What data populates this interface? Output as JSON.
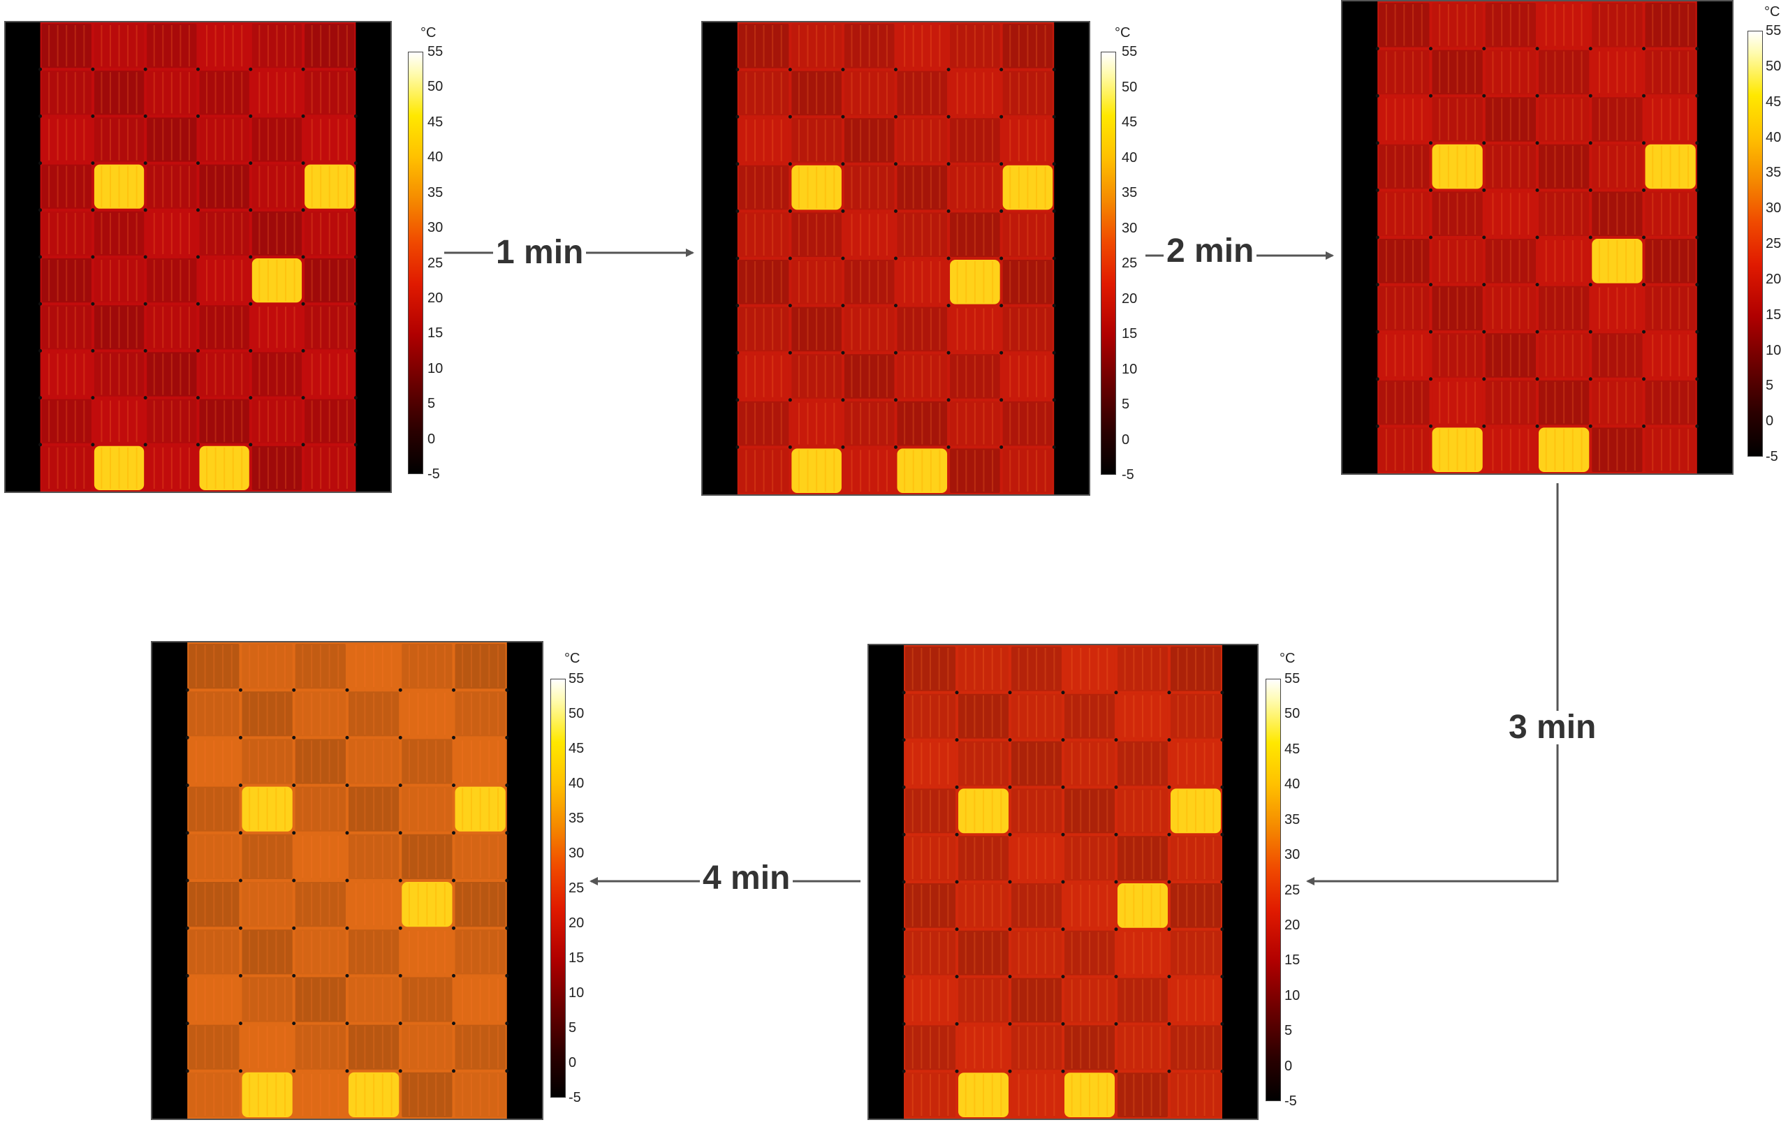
{
  "steps": [
    {
      "label": "1 min"
    },
    {
      "label": "2 min"
    },
    {
      "label": "3 min"
    },
    {
      "label": "4 min"
    }
  ],
  "colorbar": {
    "unit": "°C",
    "ticks": [
      "55",
      "50",
      "45",
      "40",
      "35",
      "30",
      "25",
      "20",
      "15",
      "10",
      "5",
      "0",
      "-5"
    ]
  },
  "palette": {
    "hot_module": "#ffd21a",
    "cells_t0": "#c20c0c",
    "cells_t1": "#c91a0b",
    "cells_t2": "#c8150b",
    "cells_t3": "#d2290b",
    "cells_t4": "#e06a16"
  },
  "frames": [
    {
      "name": "frame-0min",
      "grid": {
        "cols": 6,
        "rows": 10
      },
      "hot_cells": [
        {
          "c": 1,
          "r": 3
        },
        {
          "c": 5,
          "r": 3
        },
        {
          "c": 4,
          "r": 5
        },
        {
          "c": 1,
          "r": 9
        },
        {
          "c": 3,
          "r": 9
        }
      ]
    },
    {
      "name": "frame-1min",
      "grid": {
        "cols": 6,
        "rows": 10
      },
      "hot_cells": [
        {
          "c": 1,
          "r": 3
        },
        {
          "c": 5,
          "r": 3
        },
        {
          "c": 4,
          "r": 5
        },
        {
          "c": 1,
          "r": 9
        },
        {
          "c": 3,
          "r": 9
        }
      ]
    },
    {
      "name": "frame-2min",
      "grid": {
        "cols": 6,
        "rows": 10
      },
      "hot_cells": [
        {
          "c": 1,
          "r": 3
        },
        {
          "c": 5,
          "r": 3
        },
        {
          "c": 4,
          "r": 5
        },
        {
          "c": 1,
          "r": 9
        },
        {
          "c": 3,
          "r": 9
        }
      ]
    },
    {
      "name": "frame-3min",
      "grid": {
        "cols": 6,
        "rows": 10
      },
      "hot_cells": [
        {
          "c": 1,
          "r": 3
        },
        {
          "c": 5,
          "r": 3
        },
        {
          "c": 4,
          "r": 5
        },
        {
          "c": 1,
          "r": 9
        },
        {
          "c": 3,
          "r": 9
        }
      ]
    },
    {
      "name": "frame-4min",
      "grid": {
        "cols": 6,
        "rows": 10
      },
      "hot_cells": [
        {
          "c": 1,
          "r": 3
        },
        {
          "c": 5,
          "r": 3
        },
        {
          "c": 4,
          "r": 5
        },
        {
          "c": 1,
          "r": 9
        },
        {
          "c": 3,
          "r": 9
        }
      ]
    }
  ]
}
